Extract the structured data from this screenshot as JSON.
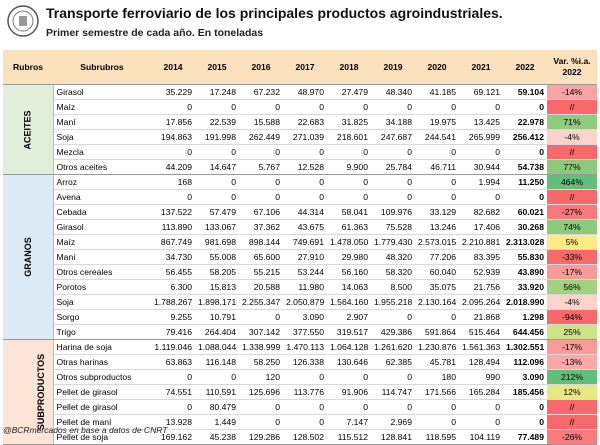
{
  "header": {
    "title": "Transporte ferroviario de los principales productos agroindustriales.",
    "subtitle": "Primer semestre de cada año. En toneladas"
  },
  "table": {
    "columns": [
      "Rubros",
      "Subrubros",
      "2014",
      "2015",
      "2016",
      "2017",
      "2018",
      "2019",
      "2020",
      "2021",
      "2022",
      "Var. %i.a. 2022"
    ],
    "groups": [
      {
        "name": "ACEITES",
        "color": "#e2efda",
        "rows": [
          {
            "label": "Girasol",
            "values": [
              "35.229",
              "17.248",
              "67.232",
              "48.970",
              "27.479",
              "48.340",
              "41.185",
              "69.121",
              "59.104"
            ],
            "var": "-14%",
            "var_color": "#f9a3a4"
          },
          {
            "label": "Maíz",
            "values": [
              "0",
              "0",
              "0",
              "0",
              "0",
              "0",
              "0",
              "0",
              "0"
            ],
            "var": "//",
            "var_color": "#f8696b"
          },
          {
            "label": "Maní",
            "values": [
              "17.856",
              "22.539",
              "15.588",
              "22.683",
              "31.825",
              "34.188",
              "19.975",
              "13.425",
              "22.978"
            ],
            "var": "71%",
            "var_color": "#8fcb7d"
          },
          {
            "label": "Soja",
            "values": [
              "194.863",
              "191.998",
              "262.449",
              "271.039",
              "218.601",
              "247.687",
              "244.541",
              "265.999",
              "256.412"
            ],
            "var": "-4%",
            "var_color": "#fbd3cb"
          },
          {
            "label": "Mezcla",
            "values": [
              "0",
              "0",
              "0",
              "0",
              "0",
              "0",
              "0",
              "0",
              "0"
            ],
            "var": "//",
            "var_color": "#f8696b"
          },
          {
            "label": "Otros aceites",
            "values": [
              "44.209",
              "14.647",
              "5.767",
              "12.528",
              "9.900",
              "25.784",
              "46.711",
              "30.944",
              "54.738"
            ],
            "var": "77%",
            "var_color": "#8bc97c"
          }
        ]
      },
      {
        "name": "GRANOS",
        "color": "#ddebf7",
        "rows": [
          {
            "label": "Arroz",
            "values": [
              "168",
              "0",
              "0",
              "0",
              "0",
              "0",
              "0",
              "1.994",
              "11.250"
            ],
            "var": "464%",
            "var_color": "#63be7b"
          },
          {
            "label": "Avena",
            "values": [
              "0",
              "0",
              "0",
              "0",
              "0",
              "0",
              "0",
              "0",
              "0"
            ],
            "var": "//",
            "var_color": "#f8696b"
          },
          {
            "label": "Cebada",
            "values": [
              "137.522",
              "57.479",
              "67.106",
              "44.314",
              "58.041",
              "109.976",
              "33.129",
              "82.682",
              "60.021"
            ],
            "var": "-27%",
            "var_color": "#f8797b"
          },
          {
            "label": "Girasol",
            "values": [
              "113.890",
              "133.067",
              "37.362",
              "43.675",
              "61.363",
              "75.528",
              "13.246",
              "17.406",
              "30.268"
            ],
            "var": "74%",
            "var_color": "#8dca7d"
          },
          {
            "label": "Maíz",
            "values": [
              "867.749",
              "981.698",
              "898.144",
              "749.691",
              "1.478.050",
              "1.779.430",
              "2.573.015",
              "2.210.881",
              "2.313.028"
            ],
            "var": "5%",
            "var_color": "#ffeb84"
          },
          {
            "label": "Maní",
            "values": [
              "34.730",
              "55.008",
              "65.600",
              "27.910",
              "29.980",
              "48.320",
              "77.206",
              "83.395",
              "55.830"
            ],
            "var": "-33%",
            "var_color": "#f8696b"
          },
          {
            "label": "Otros cereales",
            "values": [
              "56.455",
              "58.205",
              "55.215",
              "53.244",
              "56.160",
              "58.320",
              "60.040",
              "52.939",
              "43.890"
            ],
            "var": "-17%",
            "var_color": "#f99a9b"
          },
          {
            "label": "Porotos",
            "values": [
              "6.300",
              "15.813",
              "20.588",
              "11.980",
              "14.063",
              "8.500",
              "35.075",
              "21.756",
              "33.920"
            ],
            "var": "56%",
            "var_color": "#a0d27f"
          },
          {
            "label": "Soja",
            "values": [
              "1.788.267",
              "1.898.171",
              "2.255.347",
              "2.050.879",
              "1.564.160",
              "1.955.218",
              "2.130.164",
              "2.095.264",
              "2.018.990"
            ],
            "var": "-4%",
            "var_color": "#fbd3cb"
          },
          {
            "label": "Sorgo",
            "values": [
              "9.255",
              "10.791",
              "0",
              "3.090",
              "2.907",
              "0",
              "0",
              "21.868",
              "1.298"
            ],
            "var": "-94%",
            "var_color": "#f8696b"
          },
          {
            "label": "Trigo",
            "values": [
              "79.416",
              "264.404",
              "307.142",
              "377.550",
              "319.517",
              "429.386",
              "591.864",
              "515.464",
              "644.456"
            ],
            "var": "25%",
            "var_color": "#cde38a"
          }
        ]
      },
      {
        "name": "SUBPRODUCTOS",
        "color": "#fce4d6",
        "rows": [
          {
            "label": "Harina de soja",
            "values": [
              "1.119.046",
              "1.088.044",
              "1.338.999",
              "1.470.113",
              "1.064.128",
              "1.261.620",
              "1.230.876",
              "1.561.363",
              "1.302.551"
            ],
            "var": "-17%",
            "var_color": "#f99a9b"
          },
          {
            "label": "Otras harinas",
            "values": [
              "63.863",
              "116.148",
              "58.250",
              "126.338",
              "130.646",
              "62.385",
              "45.781",
              "128.494",
              "112.096"
            ],
            "var": "-13%",
            "var_color": "#f9a9aa"
          },
          {
            "label": "Otros subproductos",
            "values": [
              "0",
              "0",
              "120",
              "0",
              "0",
              "0",
              "180",
              "990",
              "3.090"
            ],
            "var": "212%",
            "var_color": "#63be7b"
          },
          {
            "label": "Pellet de girasol",
            "values": [
              "74.551",
              "110.591",
              "125.696",
              "113.776",
              "91.906",
              "114.747",
              "171.566",
              "165.284",
              "185.456"
            ],
            "var": "12%",
            "var_color": "#e6e883"
          },
          {
            "label": "Pellet de girasol",
            "values": [
              "0",
              "80.479",
              "0",
              "0",
              "0",
              "0",
              "0",
              "0",
              "0"
            ],
            "var": "//",
            "var_color": "#f8696b"
          },
          {
            "label": "Pellet de maní",
            "values": [
              "13.928",
              "1.449",
              "0",
              "0",
              "7.147",
              "2.969",
              "0",
              "0",
              "0"
            ],
            "var": "//",
            "var_color": "#f8696b"
          },
          {
            "label": "Pellet de soja",
            "values": [
              "169.162",
              "45.238",
              "129.286",
              "128.502",
              "115.512",
              "128.841",
              "118.595",
              "104.119",
              "77.489"
            ],
            "var": "-26%",
            "var_color": "#f87c7e"
          }
        ]
      }
    ]
  },
  "source": "@BCRmercados en base a datos de CNRT"
}
